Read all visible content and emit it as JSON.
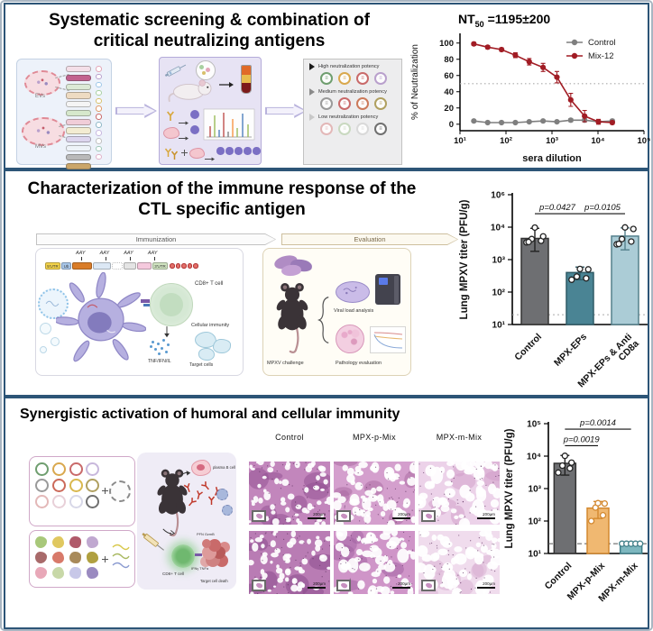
{
  "figure": {
    "outer_border": "#a9b6c2",
    "panel_border": "#2d5577",
    "bg": "#ffffff"
  },
  "panel1": {
    "title_line1": "Systematic screening & combination of",
    "title_line2": "critical neutralizing antigens",
    "ev_label": "EVs",
    "mv_label": "MVs",
    "pill_colors": [
      "#f4dfe8",
      "#c2628f",
      "#dcead6",
      "#eedbc2",
      "#f5f5f5",
      "#d6e8cc",
      "#f0cdd8",
      "#f3ecd2",
      "#ddd6ee",
      "#eef3f8",
      "#b9b9b9",
      "#caa66a",
      "#93404a"
    ],
    "antigen_circle_colors": [
      "#e3a7b8",
      "#b9a0cc",
      "#9ec7e8",
      "#a8d0a0",
      "#d8c06a",
      "#e09a6a",
      "#c96a6a",
      "#8fb8c8",
      "#c8b8e0",
      "#c0c0c0",
      "#a0c8b8",
      "#e0b0c8"
    ],
    "potency_rows": [
      {
        "label": "High neutralization potency",
        "arrow": "#1a1a1a",
        "circles": [
          "#6f9e6f",
          "#d9a84e",
          "#c96a6a",
          "#b9a0cc"
        ]
      },
      {
        "label": "Medium neutralization potency",
        "arrow": "#8a8a8a",
        "circles": [
          "#9a9a9a",
          "#c96a6a",
          "#cc7a5a",
          "#b0a060"
        ]
      },
      {
        "label": "Low neutralization potency",
        "arrow": "#c8c8c8",
        "circles": [
          "#e3b8b8",
          "#c9d9c0",
          "#d9d9d9",
          "#707070"
        ]
      }
    ]
  },
  "nt50_title": {
    "prefix": "NT",
    "sub": "50",
    "rest": " =1195±200"
  },
  "panel2": {
    "title_line1": "Characterization of the immune response of the",
    "title_line2": "CTL specific antigen",
    "banner_immunization": "Immunization",
    "banner_evaluation": "Evaluation",
    "aay": "AAY",
    "utr5": "5'UTR",
    "ub": "Ub",
    "utr3": "3'UTR",
    "cd8_label": "CD8+ T cell",
    "cellular_label": "Cellular immunity",
    "cytokine_label": "TNF/IFN/IL",
    "target_label": "Target cells",
    "challenge_label": "MPXV challenge",
    "viral_label": "Viral load analysis",
    "pathology_label": "Pathology evaluation"
  },
  "panel3": {
    "title": "Synergistic activation of humoral and cellular immunity",
    "histology_headers": [
      "Control",
      "MPX-p-Mix",
      "MPX-m-Mix"
    ],
    "scale_label": "200μm",
    "plasma_label": "plasma B cell",
    "cd8_label": "CD8+ T cell",
    "target_label": "Target cell death",
    "pfn_label": "PFN GzmB",
    "ifn_label": "IFNγ TNFα",
    "circle_colors": [
      "#6f9e6f",
      "#d9a84e",
      "#c96a6a",
      "#c8b8dc",
      "#9a9a9a",
      "#cc6a5a",
      "#d9b84e",
      "#b0a060",
      "#e3b8b8",
      "#e8d0d8",
      "#d8d8e8",
      "#707070"
    ],
    "blob_colors": [
      "#a8c87a",
      "#e0c860",
      "#b05a6a",
      "#c0a8d0",
      "#a86a6a",
      "#d87a6a",
      "#a88a5a",
      "#b0a040",
      "#e8a8b8",
      "#c8d8a8",
      "#c8c8e8",
      "#9a8ac0"
    ],
    "histology_tiles": [
      {
        "bg": "#c286bc",
        "dark": "#8f4d8f",
        "holes": 60,
        "hmin": 1.5,
        "hmax": 4,
        "seed": 11
      },
      {
        "bg": "#d49fcd",
        "dark": "#a868a0",
        "holes": 55,
        "hmin": 2,
        "hmax": 6,
        "seed": 22
      },
      {
        "bg": "#ecd2e9",
        "dark": "#cf9cc8",
        "holes": 52,
        "hmin": 2.5,
        "hmax": 7,
        "seed": 33
      },
      {
        "bg": "#b97cb4",
        "dark": "#87478a",
        "holes": 55,
        "hmin": 1.5,
        "hmax": 4.5,
        "seed": 44
      },
      {
        "bg": "#cf95c8",
        "dark": "#a060a0",
        "holes": 55,
        "hmin": 2,
        "hmax": 6.5,
        "seed": 55
      },
      {
        "bg": "#f0dced",
        "dark": "#d8aed2",
        "holes": 55,
        "hmin": 2.5,
        "hmax": 7,
        "seed": 66
      }
    ]
  },
  "chart_data": [
    {
      "id": "nt50-neutralization-curve",
      "type": "line",
      "title": "NT50 =1195±200",
      "xlabel": "sera dilution",
      "ylabel": "% of Neutralization",
      "x": [
        20,
        40,
        80,
        160,
        320,
        640,
        1280,
        2560,
        5120,
        10240,
        20480
      ],
      "xtick_labels": [
        "10¹",
        "10²",
        "10³",
        "10⁴",
        "10⁵"
      ],
      "yticks": [
        0,
        20,
        40,
        60,
        80,
        100
      ],
      "ylim": [
        -8,
        112
      ],
      "hline": 50,
      "legend_position": "top-right",
      "series": [
        {
          "name": "Control",
          "color": "#7f7f7f",
          "values": [
            4,
            2,
            2,
            2,
            3,
            4,
            3,
            5,
            5,
            3,
            4
          ],
          "errors": [
            1,
            1,
            1,
            1,
            1,
            1,
            1,
            2,
            2,
            1,
            2
          ]
        },
        {
          "name": "Mix-12",
          "color": "#a11c24",
          "values": [
            99,
            95,
            92,
            85,
            77,
            70,
            58,
            30,
            10,
            3,
            2
          ],
          "errors": [
            2,
            2,
            2,
            3,
            4,
            5,
            7,
            8,
            7,
            3,
            2
          ]
        }
      ]
    },
    {
      "id": "lung-titer-ctl",
      "type": "bar",
      "ylabel": "Lung MPXV titer (PFU/g)",
      "ytick_labels": [
        "10¹",
        "10²",
        "10³",
        "10⁴",
        "10⁶"
      ],
      "lod": 20,
      "lod_dash": "2 3",
      "lod_color": "#aaaaaa",
      "bars": [
        {
          "label": [
            "Control"
          ],
          "value": 4500,
          "err_lo": 1800,
          "err_hi": 9200,
          "fill": "#6e6f72",
          "stroke": "#333333",
          "points": [
            3400,
            3800,
            4300,
            5200,
            9700,
            3500
          ]
        },
        {
          "label": [
            "MPX-EPs"
          ],
          "value": 400,
          "err_lo": 240,
          "err_hi": 590,
          "fill": "#4a8494",
          "stroke": "#2f5b66",
          "points": [
            240,
            265,
            300,
            500,
            515
          ]
        },
        {
          "label": [
            "MPX-EPs & Anti",
            "CD8a"
          ],
          "value": 5300,
          "err_lo": 2000,
          "err_hi": 9500,
          "fill": "#abccd6",
          "stroke": "#55808c",
          "points": [
            2950,
            3600,
            4300,
            8800,
            9800,
            3050
          ]
        }
      ],
      "pvalues": [
        {
          "text": "p=0.0427",
          "a": 0,
          "b": 1,
          "value": 26000
        },
        {
          "text": "p=0.0105",
          "a": 1,
          "b": 2,
          "value": 26000
        }
      ]
    },
    {
      "id": "lung-titer-mix",
      "type": "bar",
      "ylabel": "Lung MPXV titer (PFU/g)",
      "ytick_labels": [
        "10¹",
        "10²",
        "10³",
        "10⁴",
        "10⁵"
      ],
      "lod": 20,
      "lod_dash": "5 3",
      "lod_color": "#555555",
      "bars": [
        {
          "label": [
            "Control"
          ],
          "value": 6000,
          "err_lo": 2600,
          "err_hi": 10500,
          "fill": "#6e6f72",
          "stroke": "#333333",
          "points": [
            3100,
            4200,
            5100,
            6300,
            10200
          ]
        },
        {
          "label": [
            "MPX-p-Mix"
          ],
          "value": 250,
          "err_lo": 120,
          "err_hi": 400,
          "fill": "#f0b871",
          "stroke": "#d3882f",
          "point_stroke": "#d3882f",
          "points": [
            100,
            150,
            260,
            345,
            355
          ]
        },
        {
          "label": [
            "MPX-m-Mix"
          ],
          "value": 20,
          "err_lo": null,
          "err_hi": null,
          "fill": "#7db7bf",
          "stroke": "#3f7e88",
          "point_stroke": "#3f7e88",
          "points_row": true,
          "points": [
            20,
            20,
            20,
            20,
            20
          ]
        }
      ],
      "pvalues": [
        {
          "text": "p=0.0019",
          "a": 0,
          "b": 1,
          "value": 21000
        },
        {
          "text": "p=0.0014",
          "a": 0,
          "b": 2,
          "value": 68000
        }
      ]
    }
  ]
}
